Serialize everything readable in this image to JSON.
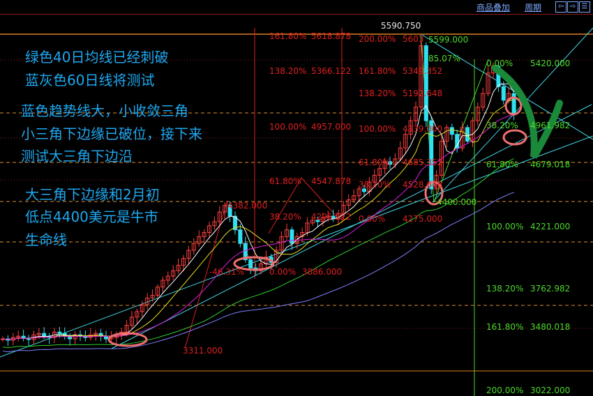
{
  "toolbar": {
    "overlay_label": "商品叠加",
    "period_label": "周期",
    "buttons": [
      "left-arrow-icon",
      "right-arrow-icon",
      "layout-icon"
    ]
  },
  "annotations": [
    "绿色40日均线已经刺破",
    "蓝灰色60日线将测试",
    "蓝色趋势线大，小收敛三角",
    "小三角下边缘已破位，接下来",
    "测试大三角下边沿",
    "大三角下边缘和2月初",
    "低点4400美元是牛市",
    "生命线"
  ],
  "colors": {
    "up": "#ff4040",
    "down": "#30e0f0",
    "fib_red": "#e02020",
    "fib_green": "#4cdc2a",
    "annotation": "#1ea8f0",
    "highlight_circle": "#f07070",
    "arrow": "#1a8a3a"
  },
  "chart_data": {
    "type": "candlestick",
    "ylim": [
      3022,
      5599
    ],
    "closes": [
      3400,
      3390,
      3410,
      3420,
      3405,
      3395,
      3430,
      3440,
      3420,
      3410,
      3450,
      3440,
      3420,
      3400,
      3430,
      3420,
      3410,
      3430,
      3440,
      3420,
      3400,
      3410,
      3430,
      3450,
      3500,
      3560,
      3600,
      3650,
      3700,
      3720,
      3780,
      3830,
      3860,
      3900,
      3940,
      3990,
      4050,
      4100,
      4150,
      4180,
      4230,
      4260,
      4330,
      4380,
      4300,
      4200,
      4100,
      3980,
      3920,
      3900,
      3950,
      4000,
      3960,
      4050,
      4150,
      4200,
      4100,
      4150,
      4180,
      4250,
      4270,
      4260,
      4290,
      4300,
      4280,
      4320,
      4380,
      4420,
      4450,
      4500,
      4480,
      4550,
      4600,
      4650,
      4700,
      4680,
      4720,
      4800,
      4900,
      5000,
      5100,
      5550,
      5000,
      4500,
      4600,
      4850,
      4950,
      4900,
      4800,
      4950,
      4850,
      5000,
      5100,
      5200,
      5350,
      5400,
      5250,
      5150,
      5200,
      5050
    ],
    "moving_averages": [
      {
        "period": 5,
        "color": "#ffffff"
      },
      {
        "period": 10,
        "color": "#e8e020"
      },
      {
        "period": 20,
        "color": "#e020e0"
      },
      {
        "period": 40,
        "color": "#30d030"
      },
      {
        "period": 60,
        "color": "#8080ff"
      }
    ],
    "fib_set_1": [
      {
        "pct": "161.80%",
        "price": "5618.878"
      },
      {
        "pct": "138.20%",
        "price": "5366.122"
      },
      {
        "pct": "100.00%",
        "price": "4957.000"
      },
      {
        "pct": "61.80%",
        "price": "4547.878"
      },
      {
        "pct": "38.20%",
        "price": "4295.122"
      },
      {
        "pct": "-46.31%",
        "price": ""
      },
      {
        "pct": "0.00%",
        "price": "3886.000"
      }
    ],
    "fib_set_2": [
      {
        "pct": "200.00%",
        "price": "5603"
      },
      {
        "pct": "161.80%",
        "price": "5349.352"
      },
      {
        "pct": "138.20%",
        "price": "5192.648"
      },
      {
        "pct": "100.00%",
        "price": "4939.000"
      },
      {
        "pct": "61.80%",
        "price": "4685.352"
      },
      {
        "pct": "38.20%",
        "price": "4528.648"
      },
      {
        "pct": "0.00%",
        "price": "4275.000"
      }
    ],
    "fib_set_3": [
      {
        "pct": "0.00%",
        "price": "5420.000"
      },
      {
        "pct": "38.20%",
        "price": "4961.982"
      },
      {
        "pct": "61.80%",
        "price": "4679.018"
      },
      {
        "pct": "100.00%",
        "price": "4221.000"
      },
      {
        "pct": "138.20%",
        "price": "3762.982"
      },
      {
        "pct": "161.80%",
        "price": "3480.018"
      },
      {
        "pct": "200.00%",
        "price": "3022.000"
      }
    ],
    "price_marks": {
      "high": "5590.750",
      "peak_green": "5599.000",
      "ratio_green": "85.07%",
      "low_green": "4400.000",
      "swing_high": "4382.000",
      "swing_low": "3311.000"
    }
  }
}
